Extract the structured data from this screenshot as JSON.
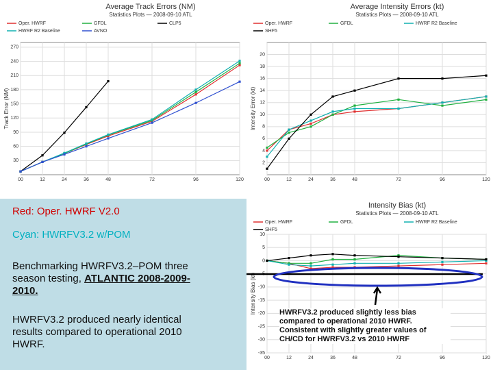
{
  "chart_data": [
    {
      "type": "line",
      "title": "Average Track Errors (NM)",
      "subtitle": "Statistics Plots — 2008-09-10 ATL",
      "y_label": "Track Error (NM)",
      "x": [
        0,
        12,
        24,
        36,
        48,
        72,
        96,
        120
      ],
      "xlim": [
        0,
        120
      ],
      "xticks": [
        {
          "value": 0,
          "label": "00"
        },
        12,
        24,
        36,
        48,
        72,
        96,
        120
      ],
      "ylim": [
        0,
        280
      ],
      "yticks": [
        30,
        60,
        90,
        120,
        150,
        180,
        210,
        240,
        270
      ],
      "series": [
        {
          "name": "Oper. HWRF",
          "color": "#e03030",
          "values": [
            7,
            27,
            45,
            64,
            82,
            113,
            170,
            232
          ]
        },
        {
          "name": "GFDL",
          "color": "#20b040",
          "values": [
            7,
            27,
            45,
            65,
            84,
            115,
            175,
            236
          ]
        },
        {
          "name": "CLP5",
          "color": "#000000",
          "values": [
            7,
            41,
            89,
            143,
            198,
            null,
            null,
            null
          ]
        },
        {
          "name": "HWRF R2 Baseline",
          "color": "#10b0b0",
          "values": [
            7,
            27,
            46,
            66,
            85,
            117,
            180,
            241
          ]
        },
        {
          "name": "AVNO",
          "color": "#3050d0",
          "values": [
            7,
            27,
            43,
            60,
            77,
            110,
            152,
            197
          ]
        }
      ]
    },
    {
      "type": "line",
      "title": "Average Intensity Errors (kt)",
      "subtitle": "Statistics Plots — 2008-09-10 ATL",
      "y_label": "Intensity Error (kt)",
      "x": [
        0,
        12,
        24,
        36,
        48,
        72,
        96,
        120
      ],
      "xlim": [
        0,
        120
      ],
      "xticks": [
        {
          "value": 0,
          "label": "00"
        },
        12,
        24,
        36,
        48,
        72,
        96,
        120
      ],
      "ylim": [
        0,
        22
      ],
      "yticks": [
        2,
        4,
        6,
        8,
        10,
        12,
        14,
        16,
        18,
        20
      ],
      "series": [
        {
          "name": "Oper. HWRF",
          "color": "#e03030",
          "values": [
            4,
            7.5,
            8.5,
            10,
            10.5,
            11,
            12,
            13
          ]
        },
        {
          "name": "GFDL",
          "color": "#20b040",
          "values": [
            4.5,
            7,
            8,
            10,
            11.5,
            12.5,
            11.5,
            12.5
          ]
        },
        {
          "name": "HWRF R2 Baseline",
          "color": "#10b0b0",
          "values": [
            3,
            7.5,
            9,
            10.5,
            11,
            11,
            12,
            13
          ]
        },
        {
          "name": "SHF5",
          "color": "#000000",
          "values": [
            1,
            6,
            10,
            13,
            14,
            16,
            16,
            16.5
          ]
        }
      ]
    },
    {
      "type": "line",
      "title": "Intensity Bias (kt)",
      "subtitle": "Statistics Plots — 2008-09-10 ATL",
      "y_label": "Intensity Bias (kt)",
      "x": [
        0,
        12,
        24,
        36,
        48,
        72,
        96,
        120
      ],
      "xlim": [
        0,
        120
      ],
      "xticks": [
        {
          "value": 0,
          "label": "00"
        },
        12,
        24,
        36,
        48,
        72,
        96,
        120
      ],
      "ylim": [
        -35,
        10
      ],
      "yticks": [
        -35,
        -30,
        -25,
        -20,
        -15,
        -10,
        -5,
        0,
        5,
        10
      ],
      "series": [
        {
          "name": "Oper. HWRF",
          "color": "#e03030",
          "values": [
            0,
            -1,
            -3,
            -2.5,
            -2.5,
            -2,
            -1.5,
            -1
          ]
        },
        {
          "name": "GFDL",
          "color": "#20b040",
          "values": [
            0,
            -1,
            -1,
            0.5,
            0.5,
            2,
            1,
            0.5
          ]
        },
        {
          "name": "HWRF R2 Baseline",
          "color": "#10b0b0",
          "values": [
            0,
            -1.5,
            -2,
            -1.5,
            -1,
            -1,
            -0.5,
            0
          ]
        },
        {
          "name": "SHF5",
          "color": "#000000",
          "values": [
            0,
            1,
            2,
            2.5,
            2,
            1.5,
            1,
            0.5
          ]
        }
      ]
    }
  ],
  "slide": {
    "legend_red": "Red: Oper. HWRF V2.0",
    "legend_cyan": "Cyan: HWRFV3.2 w/POM",
    "benchmark": "Benchmarking HWRFV3.2–POM three season testing, ",
    "benchmark_emph": "ATLANTIC 2008-2009-2010.",
    "summary": "HWRFV3.2 produced nearly identical results compared to operational 2010 HWRF.",
    "annotation": "HWRFV3.2 produced slightly less bias compared to operational 2010 HWRF. Consistent with slightly greater values of CH/CD for HWRFV3.2 vs 2010 HWRF"
  }
}
